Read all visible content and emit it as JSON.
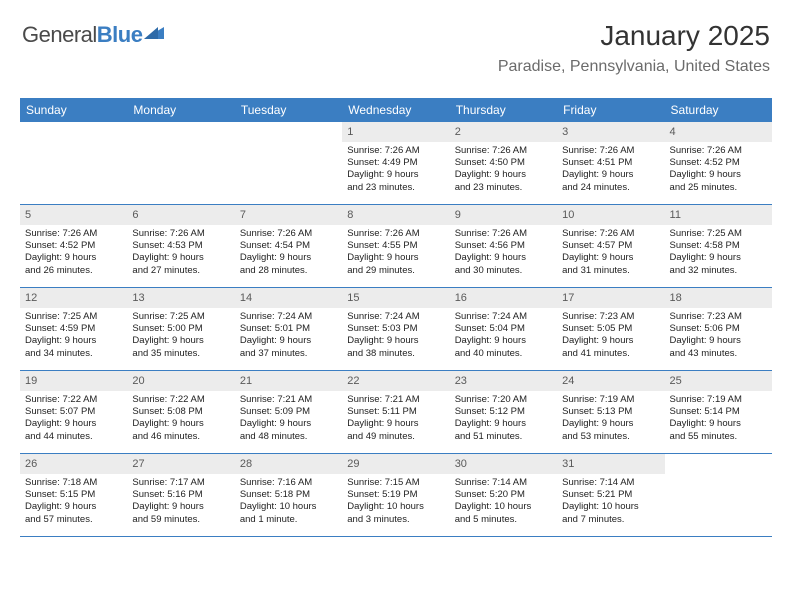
{
  "logo": {
    "general": "General",
    "blue": "Blue",
    "tri_color": "#3b7ec2"
  },
  "header": {
    "month_title": "January 2025",
    "location": "Paradise, Pennsylvania, United States"
  },
  "colors": {
    "header_bg": "#3b7ec2",
    "header_text": "#ffffff",
    "daynum_bg": "#ececec",
    "daynum_text": "#5a5a5a",
    "border": "#3b7ec2",
    "body_text": "#222222"
  },
  "day_names": [
    "Sunday",
    "Monday",
    "Tuesday",
    "Wednesday",
    "Thursday",
    "Friday",
    "Saturday"
  ],
  "weeks": [
    [
      {
        "empty": true
      },
      {
        "empty": true
      },
      {
        "empty": true
      },
      {
        "day": "1",
        "sunrise": "Sunrise: 7:26 AM",
        "sunset": "Sunset: 4:49 PM",
        "day1": "Daylight: 9 hours",
        "day2": "and 23 minutes."
      },
      {
        "day": "2",
        "sunrise": "Sunrise: 7:26 AM",
        "sunset": "Sunset: 4:50 PM",
        "day1": "Daylight: 9 hours",
        "day2": "and 23 minutes."
      },
      {
        "day": "3",
        "sunrise": "Sunrise: 7:26 AM",
        "sunset": "Sunset: 4:51 PM",
        "day1": "Daylight: 9 hours",
        "day2": "and 24 minutes."
      },
      {
        "day": "4",
        "sunrise": "Sunrise: 7:26 AM",
        "sunset": "Sunset: 4:52 PM",
        "day1": "Daylight: 9 hours",
        "day2": "and 25 minutes."
      }
    ],
    [
      {
        "day": "5",
        "sunrise": "Sunrise: 7:26 AM",
        "sunset": "Sunset: 4:52 PM",
        "day1": "Daylight: 9 hours",
        "day2": "and 26 minutes."
      },
      {
        "day": "6",
        "sunrise": "Sunrise: 7:26 AM",
        "sunset": "Sunset: 4:53 PM",
        "day1": "Daylight: 9 hours",
        "day2": "and 27 minutes."
      },
      {
        "day": "7",
        "sunrise": "Sunrise: 7:26 AM",
        "sunset": "Sunset: 4:54 PM",
        "day1": "Daylight: 9 hours",
        "day2": "and 28 minutes."
      },
      {
        "day": "8",
        "sunrise": "Sunrise: 7:26 AM",
        "sunset": "Sunset: 4:55 PM",
        "day1": "Daylight: 9 hours",
        "day2": "and 29 minutes."
      },
      {
        "day": "9",
        "sunrise": "Sunrise: 7:26 AM",
        "sunset": "Sunset: 4:56 PM",
        "day1": "Daylight: 9 hours",
        "day2": "and 30 minutes."
      },
      {
        "day": "10",
        "sunrise": "Sunrise: 7:26 AM",
        "sunset": "Sunset: 4:57 PM",
        "day1": "Daylight: 9 hours",
        "day2": "and 31 minutes."
      },
      {
        "day": "11",
        "sunrise": "Sunrise: 7:25 AM",
        "sunset": "Sunset: 4:58 PM",
        "day1": "Daylight: 9 hours",
        "day2": "and 32 minutes."
      }
    ],
    [
      {
        "day": "12",
        "sunrise": "Sunrise: 7:25 AM",
        "sunset": "Sunset: 4:59 PM",
        "day1": "Daylight: 9 hours",
        "day2": "and 34 minutes."
      },
      {
        "day": "13",
        "sunrise": "Sunrise: 7:25 AM",
        "sunset": "Sunset: 5:00 PM",
        "day1": "Daylight: 9 hours",
        "day2": "and 35 minutes."
      },
      {
        "day": "14",
        "sunrise": "Sunrise: 7:24 AM",
        "sunset": "Sunset: 5:01 PM",
        "day1": "Daylight: 9 hours",
        "day2": "and 37 minutes."
      },
      {
        "day": "15",
        "sunrise": "Sunrise: 7:24 AM",
        "sunset": "Sunset: 5:03 PM",
        "day1": "Daylight: 9 hours",
        "day2": "and 38 minutes."
      },
      {
        "day": "16",
        "sunrise": "Sunrise: 7:24 AM",
        "sunset": "Sunset: 5:04 PM",
        "day1": "Daylight: 9 hours",
        "day2": "and 40 minutes."
      },
      {
        "day": "17",
        "sunrise": "Sunrise: 7:23 AM",
        "sunset": "Sunset: 5:05 PM",
        "day1": "Daylight: 9 hours",
        "day2": "and 41 minutes."
      },
      {
        "day": "18",
        "sunrise": "Sunrise: 7:23 AM",
        "sunset": "Sunset: 5:06 PM",
        "day1": "Daylight: 9 hours",
        "day2": "and 43 minutes."
      }
    ],
    [
      {
        "day": "19",
        "sunrise": "Sunrise: 7:22 AM",
        "sunset": "Sunset: 5:07 PM",
        "day1": "Daylight: 9 hours",
        "day2": "and 44 minutes."
      },
      {
        "day": "20",
        "sunrise": "Sunrise: 7:22 AM",
        "sunset": "Sunset: 5:08 PM",
        "day1": "Daylight: 9 hours",
        "day2": "and 46 minutes."
      },
      {
        "day": "21",
        "sunrise": "Sunrise: 7:21 AM",
        "sunset": "Sunset: 5:09 PM",
        "day1": "Daylight: 9 hours",
        "day2": "and 48 minutes."
      },
      {
        "day": "22",
        "sunrise": "Sunrise: 7:21 AM",
        "sunset": "Sunset: 5:11 PM",
        "day1": "Daylight: 9 hours",
        "day2": "and 49 minutes."
      },
      {
        "day": "23",
        "sunrise": "Sunrise: 7:20 AM",
        "sunset": "Sunset: 5:12 PM",
        "day1": "Daylight: 9 hours",
        "day2": "and 51 minutes."
      },
      {
        "day": "24",
        "sunrise": "Sunrise: 7:19 AM",
        "sunset": "Sunset: 5:13 PM",
        "day1": "Daylight: 9 hours",
        "day2": "and 53 minutes."
      },
      {
        "day": "25",
        "sunrise": "Sunrise: 7:19 AM",
        "sunset": "Sunset: 5:14 PM",
        "day1": "Daylight: 9 hours",
        "day2": "and 55 minutes."
      }
    ],
    [
      {
        "day": "26",
        "sunrise": "Sunrise: 7:18 AM",
        "sunset": "Sunset: 5:15 PM",
        "day1": "Daylight: 9 hours",
        "day2": "and 57 minutes."
      },
      {
        "day": "27",
        "sunrise": "Sunrise: 7:17 AM",
        "sunset": "Sunset: 5:16 PM",
        "day1": "Daylight: 9 hours",
        "day2": "and 59 minutes."
      },
      {
        "day": "28",
        "sunrise": "Sunrise: 7:16 AM",
        "sunset": "Sunset: 5:18 PM",
        "day1": "Daylight: 10 hours",
        "day2": "and 1 minute."
      },
      {
        "day": "29",
        "sunrise": "Sunrise: 7:15 AM",
        "sunset": "Sunset: 5:19 PM",
        "day1": "Daylight: 10 hours",
        "day2": "and 3 minutes."
      },
      {
        "day": "30",
        "sunrise": "Sunrise: 7:14 AM",
        "sunset": "Sunset: 5:20 PM",
        "day1": "Daylight: 10 hours",
        "day2": "and 5 minutes."
      },
      {
        "day": "31",
        "sunrise": "Sunrise: 7:14 AM",
        "sunset": "Sunset: 5:21 PM",
        "day1": "Daylight: 10 hours",
        "day2": "and 7 minutes."
      },
      {
        "empty": true
      }
    ]
  ]
}
